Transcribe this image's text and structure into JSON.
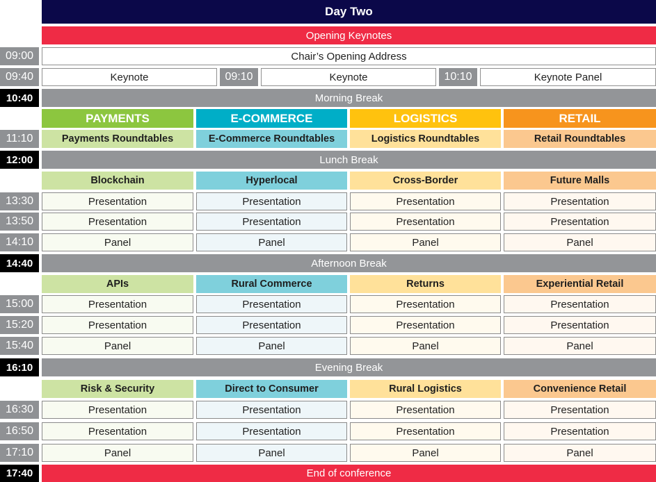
{
  "title": "Day Two",
  "opening": "Opening Keynotes",
  "chair": {
    "time": "09:00",
    "label": "Chair’s Opening Address"
  },
  "keynotes": {
    "time": "09:40",
    "k1": "Keynote",
    "t2": "09:10",
    "k2": "Keynote",
    "t3": "10:10",
    "k3": "Keynote Panel"
  },
  "morning_break": {
    "time": "10:40",
    "label": "Morning Break"
  },
  "tracks": [
    "PAYMENTS",
    "E-COMMERCE",
    "LOGISTICS",
    "RETAIL"
  ],
  "roundtables": {
    "time": "11:10",
    "labels": [
      "Payments Roundtables",
      "E-Commerce Roundtables",
      "Logistics Roundtables",
      "Retail Roundtables"
    ]
  },
  "lunch_break": {
    "time": "12:00",
    "label": "Lunch Break"
  },
  "block1": {
    "topics": [
      "Blockchain",
      "Hyperlocal",
      "Cross-Border",
      "Future Malls"
    ],
    "rows": [
      {
        "time": "13:30",
        "label": "Presentation"
      },
      {
        "time": "13:50",
        "label": "Presentation"
      },
      {
        "time": "14:10",
        "label": "Panel"
      }
    ]
  },
  "afternoon_break": {
    "time": "14:40",
    "label": "Afternoon Break"
  },
  "block2": {
    "topics": [
      "APIs",
      "Rural Commerce",
      "Returns",
      "Experiential Retail"
    ],
    "rows": [
      {
        "time": "15:00",
        "label": "Presentation"
      },
      {
        "time": "15:20",
        "label": "Presentation"
      },
      {
        "time": "15:40",
        "label": "Panel"
      }
    ]
  },
  "evening_break": {
    "time": "16:10",
    "label": "Evening Break"
  },
  "block3": {
    "topics": [
      "Risk & Security",
      "Direct to Consumer",
      "Rural Logistics",
      "Convenience Retail"
    ],
    "rows": [
      {
        "time": "16:30",
        "label": "Presentation"
      },
      {
        "time": "16:50",
        "label": "Presentation"
      },
      {
        "time": "17:10",
        "label": "Panel"
      }
    ]
  },
  "end": {
    "time": "17:40",
    "label": "End of conference"
  },
  "colors": {
    "navy": "#0b0849",
    "red": "#ef2b45",
    "gray": "#939598",
    "track_heads": [
      "#8cc63f",
      "#00aec7",
      "#ffc20e",
      "#f7941d"
    ],
    "track_subs": [
      "#cde3a3",
      "#7fd0dc",
      "#ffe19a",
      "#fbc88f"
    ],
    "track_cells": [
      "#f8fbf1",
      "#eef6f9",
      "#fffaee",
      "#fff8f0"
    ]
  }
}
